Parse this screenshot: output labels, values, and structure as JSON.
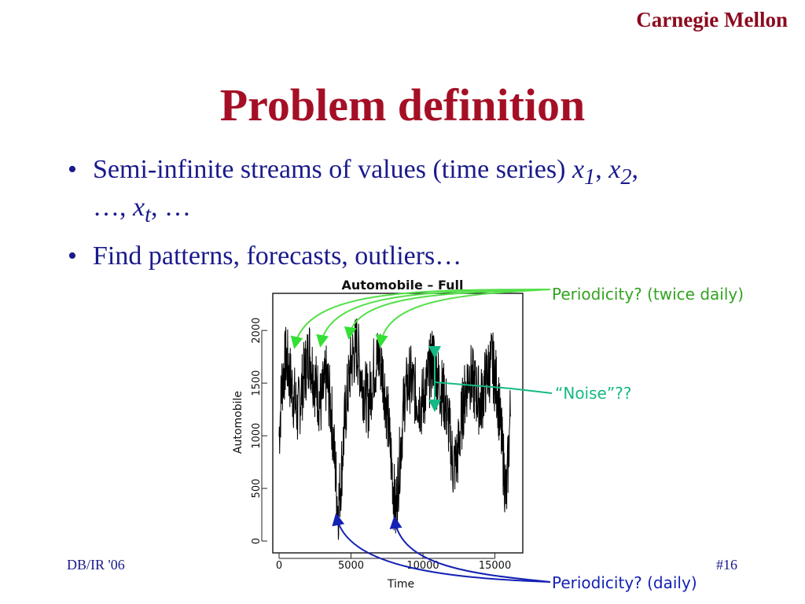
{
  "header": {
    "brand": "Carnegie Mellon",
    "title": "Problem definition"
  },
  "bullets": {
    "b1_text": "Semi-infinite streams of values (time series) ",
    "b1_x": "x",
    "b1_sub1": "1",
    "b1_sep1": ", ",
    "b1_sub2": "2",
    "b1_cont": ",",
    "b1_line2a": "…, ",
    "b1_subt": "t",
    "b1_line2b": ",  …",
    "b2_text": "Find patterns, forecasts, outliers…"
  },
  "footer": {
    "left": "DB/IR '06",
    "right": "#16"
  },
  "callouts": {
    "periodicity_twice": "Periodicity? (twice daily)",
    "noise": "“Noise”??",
    "periodicity_daily": "Periodicity? (daily)"
  },
  "colors": {
    "brand": "#8b0a1e",
    "title": "#a50f26",
    "text": "#1a1a8c",
    "green": "#33a321",
    "teal": "#15b985",
    "blue": "#1421b4"
  },
  "chart_data": {
    "type": "line",
    "title": "Automobile – Full",
    "xlabel": "Time",
    "ylabel": "Automobile",
    "xlim": [
      0,
      16500
    ],
    "ylim": [
      0,
      2300
    ],
    "x_ticks": [
      "0",
      "5000",
      "10000",
      "15000"
    ],
    "y_ticks": [
      "0",
      "500",
      "1000",
      "1500",
      "2000"
    ],
    "series": [
      {
        "x": [
          0,
          200,
          500,
          900,
          1300,
          1700,
          2100,
          2500,
          2900,
          3300,
          3650,
          3900,
          4100,
          4300,
          4600,
          5000,
          5400,
          5800,
          6200,
          6600,
          7000,
          7300,
          7600,
          7900,
          8100,
          8400,
          8700,
          9100,
          9500,
          9900,
          10300,
          10700,
          11100,
          11500,
          11800,
          12100,
          12400,
          12800,
          13200,
          13600,
          14000,
          14400,
          14800,
          15200,
          15500,
          15800,
          16100
        ],
        "values": [
          1000,
          1500,
          1750,
          1450,
          1200,
          1550,
          1800,
          1500,
          1300,
          1550,
          1200,
          700,
          300,
          600,
          1200,
          1700,
          1850,
          1500,
          1300,
          1650,
          1750,
          1500,
          1100,
          600,
          250,
          800,
          1350,
          1550,
          1400,
          1300,
          1500,
          1750,
          1500,
          1350,
          1100,
          700,
          800,
          1300,
          1600,
          1450,
          1300,
          1550,
          1700,
          1400,
          900,
          400,
          1300
        ],
        "band": 340
      }
    ]
  }
}
